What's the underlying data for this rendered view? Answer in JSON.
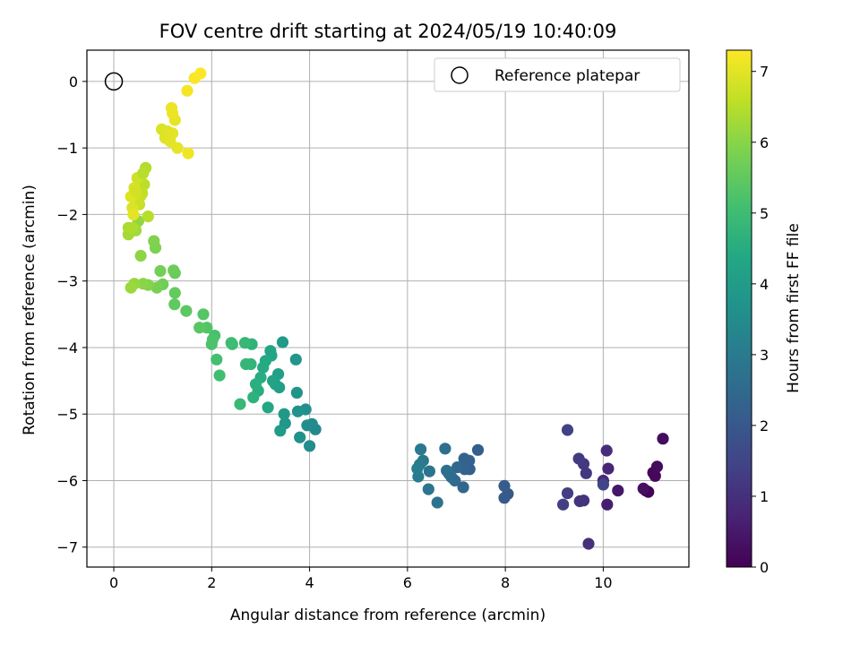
{
  "chart_data": {
    "type": "scatter",
    "title": "FOV centre drift starting at 2024/05/19 10:40:09",
    "xlabel": "Angular distance from reference (arcmin)",
    "ylabel": "Rotation from reference (arcmin)",
    "colorbar_label": "Hours from first FF file",
    "colormap": "viridis",
    "xlim": [
      -0.55,
      11.75
    ],
    "ylim": [
      -7.3,
      0.47
    ],
    "clim": [
      0,
      7.3
    ],
    "x_ticks": [
      0,
      2,
      4,
      6,
      8,
      10
    ],
    "y_ticks": [
      0,
      -1,
      -2,
      -3,
      -4,
      -5,
      -6,
      -7
    ],
    "colorbar_ticks": [
      0,
      1,
      2,
      3,
      4,
      5,
      6,
      7
    ],
    "grid": true,
    "legend": {
      "position": "top-right",
      "entries": [
        "Reference platepar"
      ]
    },
    "reference_point": {
      "x": 0,
      "y": 0
    },
    "points": [
      [
        10.87,
        -6.15,
        0.02
      ],
      [
        10.92,
        -6.17,
        0.06
      ],
      [
        11.02,
        -5.88,
        0.1
      ],
      [
        11.06,
        -5.93,
        0.15
      ],
      [
        11.1,
        -5.79,
        0.2
      ],
      [
        11.22,
        -5.37,
        0.25
      ],
      [
        10.82,
        -6.12,
        0.3
      ],
      [
        10.3,
        -6.15,
        0.45
      ],
      [
        10.08,
        -6.36,
        0.6
      ],
      [
        10.1,
        -5.82,
        0.75
      ],
      [
        10.0,
        -6.0,
        0.85
      ],
      [
        10.07,
        -5.55,
        0.95
      ],
      [
        9.7,
        -6.95,
        1.0
      ],
      [
        9.6,
        -6.3,
        1.05
      ],
      [
        9.52,
        -6.31,
        1.1
      ],
      [
        9.65,
        -5.89,
        1.15
      ],
      [
        9.6,
        -5.75,
        1.2
      ],
      [
        9.5,
        -5.67,
        1.25
      ],
      [
        9.27,
        -6.19,
        1.3
      ],
      [
        9.18,
        -6.36,
        1.35
      ],
      [
        9.27,
        -5.24,
        1.4
      ],
      [
        10.0,
        -6.06,
        1.45
      ],
      [
        8.05,
        -6.2,
        2.0
      ],
      [
        7.98,
        -6.26,
        2.05
      ],
      [
        7.98,
        -6.08,
        2.1
      ],
      [
        7.44,
        -5.54,
        2.15
      ],
      [
        7.27,
        -5.83,
        2.2
      ],
      [
        7.26,
        -5.7,
        2.25
      ],
      [
        7.16,
        -5.67,
        2.3
      ],
      [
        7.17,
        -5.83,
        2.35
      ],
      [
        7.14,
        -6.1,
        2.4
      ],
      [
        7.02,
        -5.8,
        2.45
      ],
      [
        6.97,
        -6.0,
        2.5
      ],
      [
        6.9,
        -5.95,
        2.55
      ],
      [
        6.85,
        -5.9,
        2.6
      ],
      [
        6.8,
        -5.85,
        2.65
      ],
      [
        6.77,
        -5.52,
        2.7
      ],
      [
        6.61,
        -6.33,
        2.75
      ],
      [
        6.45,
        -5.86,
        2.8
      ],
      [
        6.43,
        -6.13,
        2.85
      ],
      [
        6.32,
        -5.7,
        2.9
      ],
      [
        6.27,
        -5.53,
        2.95
      ],
      [
        6.25,
        -5.76,
        3.0
      ],
      [
        6.22,
        -5.94,
        3.05
      ],
      [
        6.2,
        -5.82,
        3.1
      ],
      [
        4.12,
        -5.23,
        3.4
      ],
      [
        4.05,
        -5.15,
        3.45
      ],
      [
        4.0,
        -5.48,
        3.5
      ],
      [
        3.95,
        -5.17,
        3.55
      ],
      [
        3.92,
        -4.93,
        3.6
      ],
      [
        3.8,
        -5.35,
        3.65
      ],
      [
        3.76,
        -4.96,
        3.7
      ],
      [
        3.74,
        -4.68,
        3.75
      ],
      [
        3.72,
        -4.18,
        3.8
      ],
      [
        3.5,
        -5.14,
        3.85
      ],
      [
        3.48,
        -5.0,
        3.9
      ],
      [
        3.45,
        -3.92,
        3.95
      ],
      [
        3.4,
        -5.25,
        4.0
      ],
      [
        3.38,
        -4.6,
        4.05
      ],
      [
        3.36,
        -4.4,
        4.1
      ],
      [
        3.3,
        -4.55,
        4.15
      ],
      [
        3.25,
        -4.5,
        4.2
      ],
      [
        3.22,
        -4.12,
        4.25
      ],
      [
        3.2,
        -4.05,
        4.3
      ],
      [
        3.15,
        -4.9,
        4.35
      ],
      [
        3.1,
        -4.2,
        4.4
      ],
      [
        3.05,
        -4.3,
        4.45
      ],
      [
        3.0,
        -4.45,
        4.5
      ],
      [
        2.95,
        -4.65,
        4.55
      ],
      [
        2.9,
        -4.55,
        4.6
      ],
      [
        2.85,
        -4.75,
        4.65
      ],
      [
        2.82,
        -3.95,
        4.7
      ],
      [
        2.8,
        -4.25,
        4.75
      ],
      [
        2.7,
        -4.25,
        4.8
      ],
      [
        2.68,
        -3.93,
        4.85
      ],
      [
        2.58,
        -4.85,
        4.9
      ],
      [
        2.42,
        -3.95,
        4.95
      ],
      [
        2.4,
        -3.93,
        5.0
      ],
      [
        2.16,
        -4.42,
        5.05
      ],
      [
        2.1,
        -4.18,
        5.1
      ],
      [
        2.06,
        -3.82,
        5.15
      ],
      [
        2.0,
        -3.95,
        5.2
      ],
      [
        2.02,
        -3.88,
        5.25
      ],
      [
        1.9,
        -3.7,
        5.3
      ],
      [
        1.83,
        -3.5,
        5.35
      ],
      [
        1.75,
        -3.7,
        5.4
      ],
      [
        1.48,
        -3.45,
        5.45
      ],
      [
        1.24,
        -3.35,
        5.5
      ],
      [
        1.25,
        -3.18,
        5.55
      ],
      [
        1.25,
        -2.88,
        5.6
      ],
      [
        1.22,
        -2.84,
        5.65
      ],
      [
        1.0,
        -3.05,
        5.7
      ],
      [
        0.95,
        -2.85,
        5.75
      ],
      [
        0.88,
        -3.1,
        5.8
      ],
      [
        0.85,
        -2.5,
        5.85
      ],
      [
        0.82,
        -2.4,
        5.9
      ],
      [
        0.7,
        -3.06,
        5.95
      ],
      [
        0.6,
        -3.04,
        6.0
      ],
      [
        0.55,
        -2.62,
        6.05
      ],
      [
        0.5,
        -2.1,
        6.1
      ],
      [
        0.42,
        -3.04,
        6.15
      ],
      [
        0.35,
        -3.1,
        6.2
      ],
      [
        0.45,
        -2.24,
        6.25
      ],
      [
        0.3,
        -2.3,
        6.3
      ],
      [
        0.3,
        -2.2,
        6.35
      ],
      [
        0.38,
        -2.2,
        6.4
      ],
      [
        0.65,
        -1.3,
        6.45
      ],
      [
        0.7,
        -2.03,
        6.5
      ],
      [
        0.62,
        -1.55,
        6.55
      ],
      [
        0.58,
        -1.68,
        6.6
      ],
      [
        0.55,
        -1.72,
        6.65
      ],
      [
        0.52,
        -1.85,
        6.7
      ],
      [
        0.48,
        -1.45,
        6.75
      ],
      [
        0.45,
        -1.7,
        6.8
      ],
      [
        0.42,
        -1.6,
        6.85
      ],
      [
        0.38,
        -1.9,
        6.9
      ],
      [
        0.35,
        -1.73,
        6.95
      ],
      [
        0.4,
        -2.0,
        7.0
      ],
      [
        0.45,
        -1.65,
        6.8
      ],
      [
        0.6,
        -1.38,
        6.5
      ],
      [
        0.98,
        -0.72,
        6.9
      ],
      [
        1.1,
        -0.75,
        6.95
      ],
      [
        1.05,
        -0.85,
        6.95
      ],
      [
        1.15,
        -0.9,
        7.0
      ],
      [
        1.2,
        -0.78,
        7.0
      ],
      [
        1.25,
        -0.58,
        7.05
      ],
      [
        1.3,
        -1.0,
        7.05
      ],
      [
        1.18,
        -0.4,
        7.1
      ],
      [
        1.2,
        -0.48,
        7.1
      ],
      [
        1.52,
        -1.08,
        7.15
      ],
      [
        1.5,
        -0.14,
        7.2
      ],
      [
        1.65,
        0.05,
        7.25
      ],
      [
        1.77,
        0.12,
        7.28
      ]
    ]
  }
}
